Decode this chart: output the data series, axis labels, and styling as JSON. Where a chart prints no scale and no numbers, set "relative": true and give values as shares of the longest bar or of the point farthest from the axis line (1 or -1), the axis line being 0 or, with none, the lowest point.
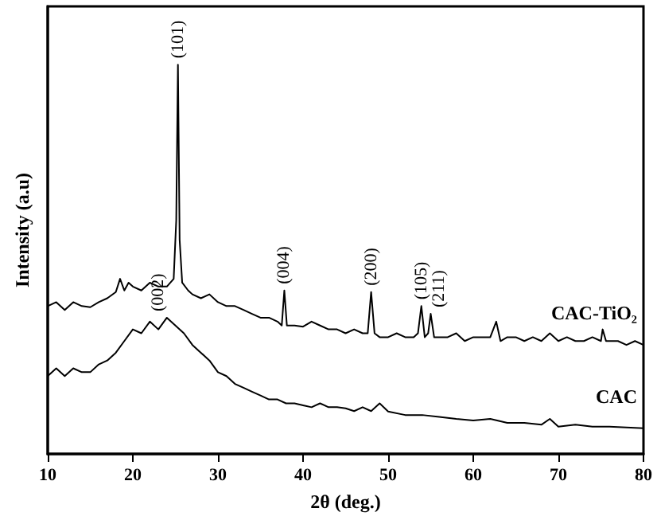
{
  "chart_data": {
    "type": "line",
    "relative": true,
    "xlabel": "2θ (deg.)",
    "ylabel": "Intensity (a.u)",
    "xlim": [
      10,
      80
    ],
    "xticks": [
      10,
      20,
      30,
      40,
      50,
      60,
      70,
      80
    ],
    "grid": false,
    "marker": "none",
    "line_style": "solid",
    "series": [
      {
        "name": "CAC-TiO₂",
        "color": "#000000",
        "x": [
          10,
          11,
          12,
          13,
          14,
          15,
          16,
          17,
          18,
          18.5,
          19,
          19.5,
          20,
          21,
          22,
          23,
          24,
          24.8,
          25.1,
          25.3,
          25.5,
          25.8,
          26.5,
          27,
          28,
          29,
          30,
          31,
          32,
          33,
          34,
          35,
          36,
          37,
          37.5,
          37.8,
          38.1,
          39,
          40,
          41,
          42,
          43,
          44,
          45,
          46,
          47,
          47.6,
          48,
          48.4,
          49,
          50,
          51,
          52,
          53,
          53.5,
          53.9,
          54.3,
          54.7,
          55,
          55.4,
          56,
          57,
          58,
          59,
          60,
          61,
          62,
          62.7,
          63.2,
          64,
          65,
          66,
          67,
          68,
          69,
          70,
          71,
          72,
          73,
          74,
          75,
          75.2,
          75.6,
          76,
          77,
          78,
          79,
          80
        ],
        "values": [
          0.38,
          0.39,
          0.37,
          0.39,
          0.38,
          0.377,
          0.39,
          0.4,
          0.416,
          0.45,
          0.42,
          0.44,
          0.43,
          0.42,
          0.44,
          0.43,
          0.43,
          0.45,
          0.6,
          1.0,
          0.55,
          0.44,
          0.42,
          0.41,
          0.4,
          0.41,
          0.39,
          0.38,
          0.38,
          0.37,
          0.36,
          0.35,
          0.35,
          0.34,
          0.33,
          0.42,
          0.33,
          0.33,
          0.327,
          0.34,
          0.33,
          0.32,
          0.32,
          0.31,
          0.32,
          0.31,
          0.31,
          0.416,
          0.31,
          0.3,
          0.3,
          0.31,
          0.3,
          0.3,
          0.31,
          0.38,
          0.3,
          0.31,
          0.36,
          0.3,
          0.3,
          0.3,
          0.31,
          0.29,
          0.3,
          0.3,
          0.3,
          0.34,
          0.29,
          0.3,
          0.3,
          0.29,
          0.3,
          0.29,
          0.31,
          0.29,
          0.3,
          0.29,
          0.29,
          0.3,
          0.29,
          0.32,
          0.29,
          0.29,
          0.29,
          0.28,
          0.29,
          0.28
        ]
      },
      {
        "name": "CAC",
        "color": "#000000",
        "x": [
          10,
          11,
          12,
          13,
          14,
          15,
          16,
          17,
          18,
          19,
          20,
          21,
          22,
          23,
          24,
          25,
          26,
          27,
          28,
          29,
          30,
          31,
          32,
          33,
          34,
          35,
          36,
          37,
          38,
          39,
          40,
          41,
          42,
          43,
          44,
          45,
          46,
          47,
          48,
          49,
          50,
          52,
          54,
          56,
          58,
          60,
          62,
          64,
          66,
          68,
          69,
          70,
          72,
          74,
          76,
          78,
          80
        ],
        "values": [
          0.2,
          0.22,
          0.2,
          0.22,
          0.21,
          0.21,
          0.23,
          0.24,
          0.26,
          0.29,
          0.32,
          0.31,
          0.34,
          0.32,
          0.35,
          0.33,
          0.31,
          0.28,
          0.26,
          0.24,
          0.21,
          0.2,
          0.18,
          0.17,
          0.16,
          0.15,
          0.14,
          0.14,
          0.13,
          0.13,
          0.125,
          0.12,
          0.13,
          0.12,
          0.12,
          0.117,
          0.11,
          0.12,
          0.11,
          0.13,
          0.109,
          0.1,
          0.1,
          0.095,
          0.09,
          0.086,
          0.09,
          0.08,
          0.08,
          0.075,
          0.09,
          0.07,
          0.075,
          0.07,
          0.07,
          0.068,
          0.066
        ]
      }
    ],
    "annotations": [
      {
        "text": "(101)",
        "x": 25.3,
        "y": 1.0
      },
      {
        "text": "(002)",
        "x": 23,
        "y": 0.35
      },
      {
        "text": "(004)",
        "x": 37.8,
        "y": 0.42
      },
      {
        "text": "(200)",
        "x": 48,
        "y": 0.416
      },
      {
        "text": "(105)",
        "x": 53.9,
        "y": 0.38
      },
      {
        "text": "(211)",
        "x": 55,
        "y": 0.36
      }
    ]
  }
}
